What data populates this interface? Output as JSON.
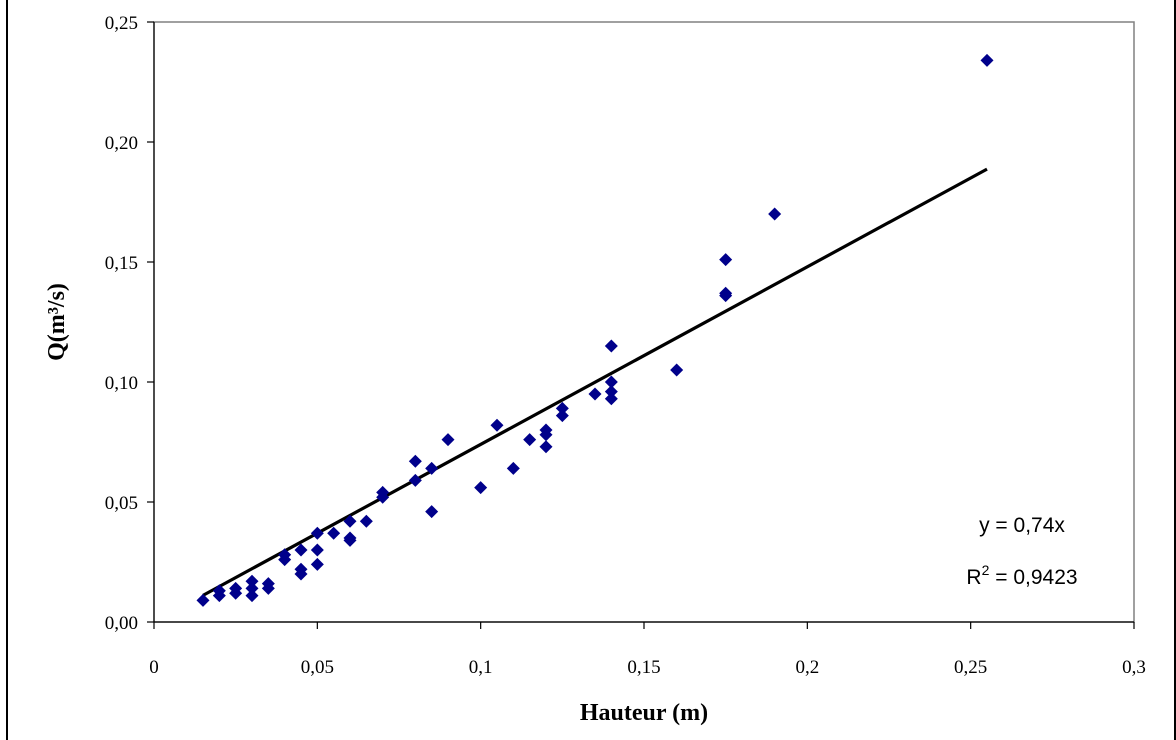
{
  "chart_data": {
    "type": "scatter",
    "title": "",
    "xlabel": "Hauteur (m)",
    "ylabel": "Q(m³/s)",
    "xlim": [
      0,
      0.3
    ],
    "ylim": [
      0,
      0.25
    ],
    "x_ticks": [
      "0",
      "0,05",
      "0,1",
      "0,15",
      "0,2",
      "0,25",
      "0,3"
    ],
    "y_ticks": [
      "0,00",
      "0,05",
      "0,10",
      "0,15",
      "0,20",
      "0,25"
    ],
    "grid": false,
    "legend": "none",
    "marker_color": "#00008b",
    "series": [
      {
        "marker": "diamond",
        "points": [
          [
            0.015,
            0.009
          ],
          [
            0.02,
            0.011
          ],
          [
            0.02,
            0.013
          ],
          [
            0.025,
            0.012
          ],
          [
            0.025,
            0.014
          ],
          [
            0.03,
            0.011
          ],
          [
            0.03,
            0.014
          ],
          [
            0.03,
            0.017
          ],
          [
            0.035,
            0.014
          ],
          [
            0.035,
            0.016
          ],
          [
            0.04,
            0.026
          ],
          [
            0.04,
            0.028
          ],
          [
            0.045,
            0.02
          ],
          [
            0.045,
            0.022
          ],
          [
            0.045,
            0.03
          ],
          [
            0.05,
            0.024
          ],
          [
            0.05,
            0.03
          ],
          [
            0.05,
            0.037
          ],
          [
            0.055,
            0.037
          ],
          [
            0.06,
            0.034
          ],
          [
            0.06,
            0.035
          ],
          [
            0.06,
            0.042
          ],
          [
            0.065,
            0.042
          ],
          [
            0.07,
            0.052
          ],
          [
            0.07,
            0.054
          ],
          [
            0.08,
            0.059
          ],
          [
            0.08,
            0.067
          ],
          [
            0.085,
            0.046
          ],
          [
            0.085,
            0.064
          ],
          [
            0.09,
            0.076
          ],
          [
            0.1,
            0.056
          ],
          [
            0.105,
            0.082
          ],
          [
            0.11,
            0.064
          ],
          [
            0.115,
            0.076
          ],
          [
            0.12,
            0.073
          ],
          [
            0.12,
            0.078
          ],
          [
            0.12,
            0.08
          ],
          [
            0.125,
            0.086
          ],
          [
            0.125,
            0.089
          ],
          [
            0.135,
            0.095
          ],
          [
            0.14,
            0.093
          ],
          [
            0.14,
            0.096
          ],
          [
            0.14,
            0.1
          ],
          [
            0.14,
            0.115
          ],
          [
            0.16,
            0.105
          ],
          [
            0.175,
            0.136
          ],
          [
            0.175,
            0.137
          ],
          [
            0.175,
            0.151
          ],
          [
            0.19,
            0.17
          ],
          [
            0.255,
            0.234
          ]
        ]
      }
    ],
    "trendline": {
      "slope": 0.74,
      "x_range": [
        0.015,
        0.255
      ],
      "color": "#000000",
      "equation": "y = 0,74x",
      "r2_prefix": "R",
      "r2_exponent": "2",
      "r2_value": " = 0,9423"
    }
  }
}
